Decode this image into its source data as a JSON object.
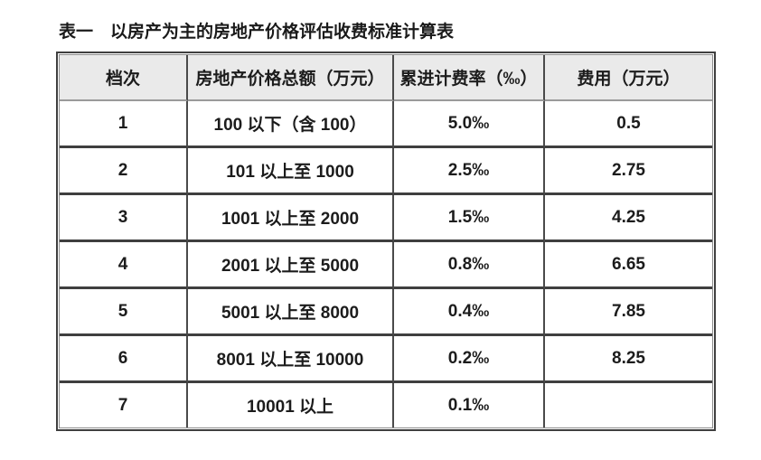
{
  "page": {
    "title": "表一　以房产为主的房地产价格评估收费标准计算表"
  },
  "table": {
    "columns": [
      "档次",
      "房地产价格总额（万元）",
      "累进计费率（‰）",
      "费用（万元）"
    ],
    "rows": [
      {
        "grade": "1",
        "range": "100 以下（含 100）",
        "rate": "5.0‰",
        "fee": "0.5"
      },
      {
        "grade": "2",
        "range": "101 以上至 1000",
        "rate": "2.5‰",
        "fee": "2.75"
      },
      {
        "grade": "3",
        "range": "1001 以上至 2000",
        "rate": "1.5‰",
        "fee": "4.25"
      },
      {
        "grade": "4",
        "range": "2001 以上至 5000",
        "rate": "0.8‰",
        "fee": "6.65"
      },
      {
        "grade": "5",
        "range": "5001 以上至 8000",
        "rate": "0.4‰",
        "fee": "7.85"
      },
      {
        "grade": "6",
        "range": "8001 以上至 10000",
        "rate": "0.2‰",
        "fee": "8.25"
      },
      {
        "grade": "7",
        "range": "10001 以上",
        "rate": "0.1‰",
        "fee": ""
      }
    ],
    "colors": {
      "border_dark": "#3f3f3f",
      "border_mid": "#9a9a9a",
      "border_inner": "#8e8e8e",
      "header_bg": "#eaeaea",
      "text": "#1c1c1c"
    }
  }
}
